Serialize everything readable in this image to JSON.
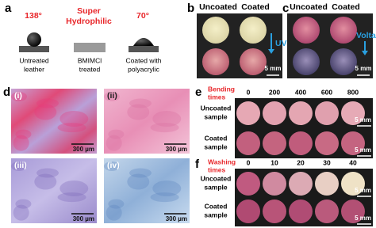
{
  "panel_a": {
    "label": "a",
    "left_angle": "138°",
    "center_title": [
      "Super",
      "Hydrophilic"
    ],
    "right_angle": "70°",
    "captions": [
      [
        "Untreated",
        "leather"
      ],
      [
        "BMIMCl",
        "treated"
      ],
      [
        "Coated with",
        "polyacrylic"
      ]
    ]
  },
  "panel_b": {
    "label": "b",
    "columns": [
      "Uncoated",
      "Coated"
    ],
    "arrow_label": "UV",
    "scale_bar": "5 mm"
  },
  "panel_c": {
    "label": "c",
    "columns": [
      "Uncoated",
      "Coated"
    ],
    "arrow_label": "Voltage",
    "scale_bar": "5 mm"
  },
  "panel_d": {
    "label": "d",
    "images": [
      {
        "label": "(i)",
        "scale_bar": "300 µm"
      },
      {
        "label": "(ii)",
        "scale_bar": "300 µm"
      },
      {
        "label": "(iii)",
        "scale_bar": "300 µm"
      },
      {
        "label": "(iv)",
        "scale_bar": "300 µm"
      }
    ]
  },
  "panel_e": {
    "label": "e",
    "axis_title": [
      "Bending",
      "times"
    ],
    "ticks": [
      0,
      200,
      400,
      600,
      800
    ],
    "rows": [
      {
        "label": [
          "Uncoated",
          "sample"
        ],
        "scale_bar": "5 mm"
      },
      {
        "label": [
          "Coated",
          "sample"
        ],
        "scale_bar": "5 mm"
      }
    ]
  },
  "panel_f": {
    "label": "f",
    "axis_title": [
      "Washing",
      "times"
    ],
    "ticks": [
      0,
      10,
      20,
      30,
      40
    ],
    "rows": [
      {
        "label": [
          "Uncoated",
          "sample"
        ],
        "scale_bar": "5 mm"
      },
      {
        "label": [
          "Coated",
          "sample"
        ],
        "scale_bar": "5 mm"
      }
    ]
  }
}
